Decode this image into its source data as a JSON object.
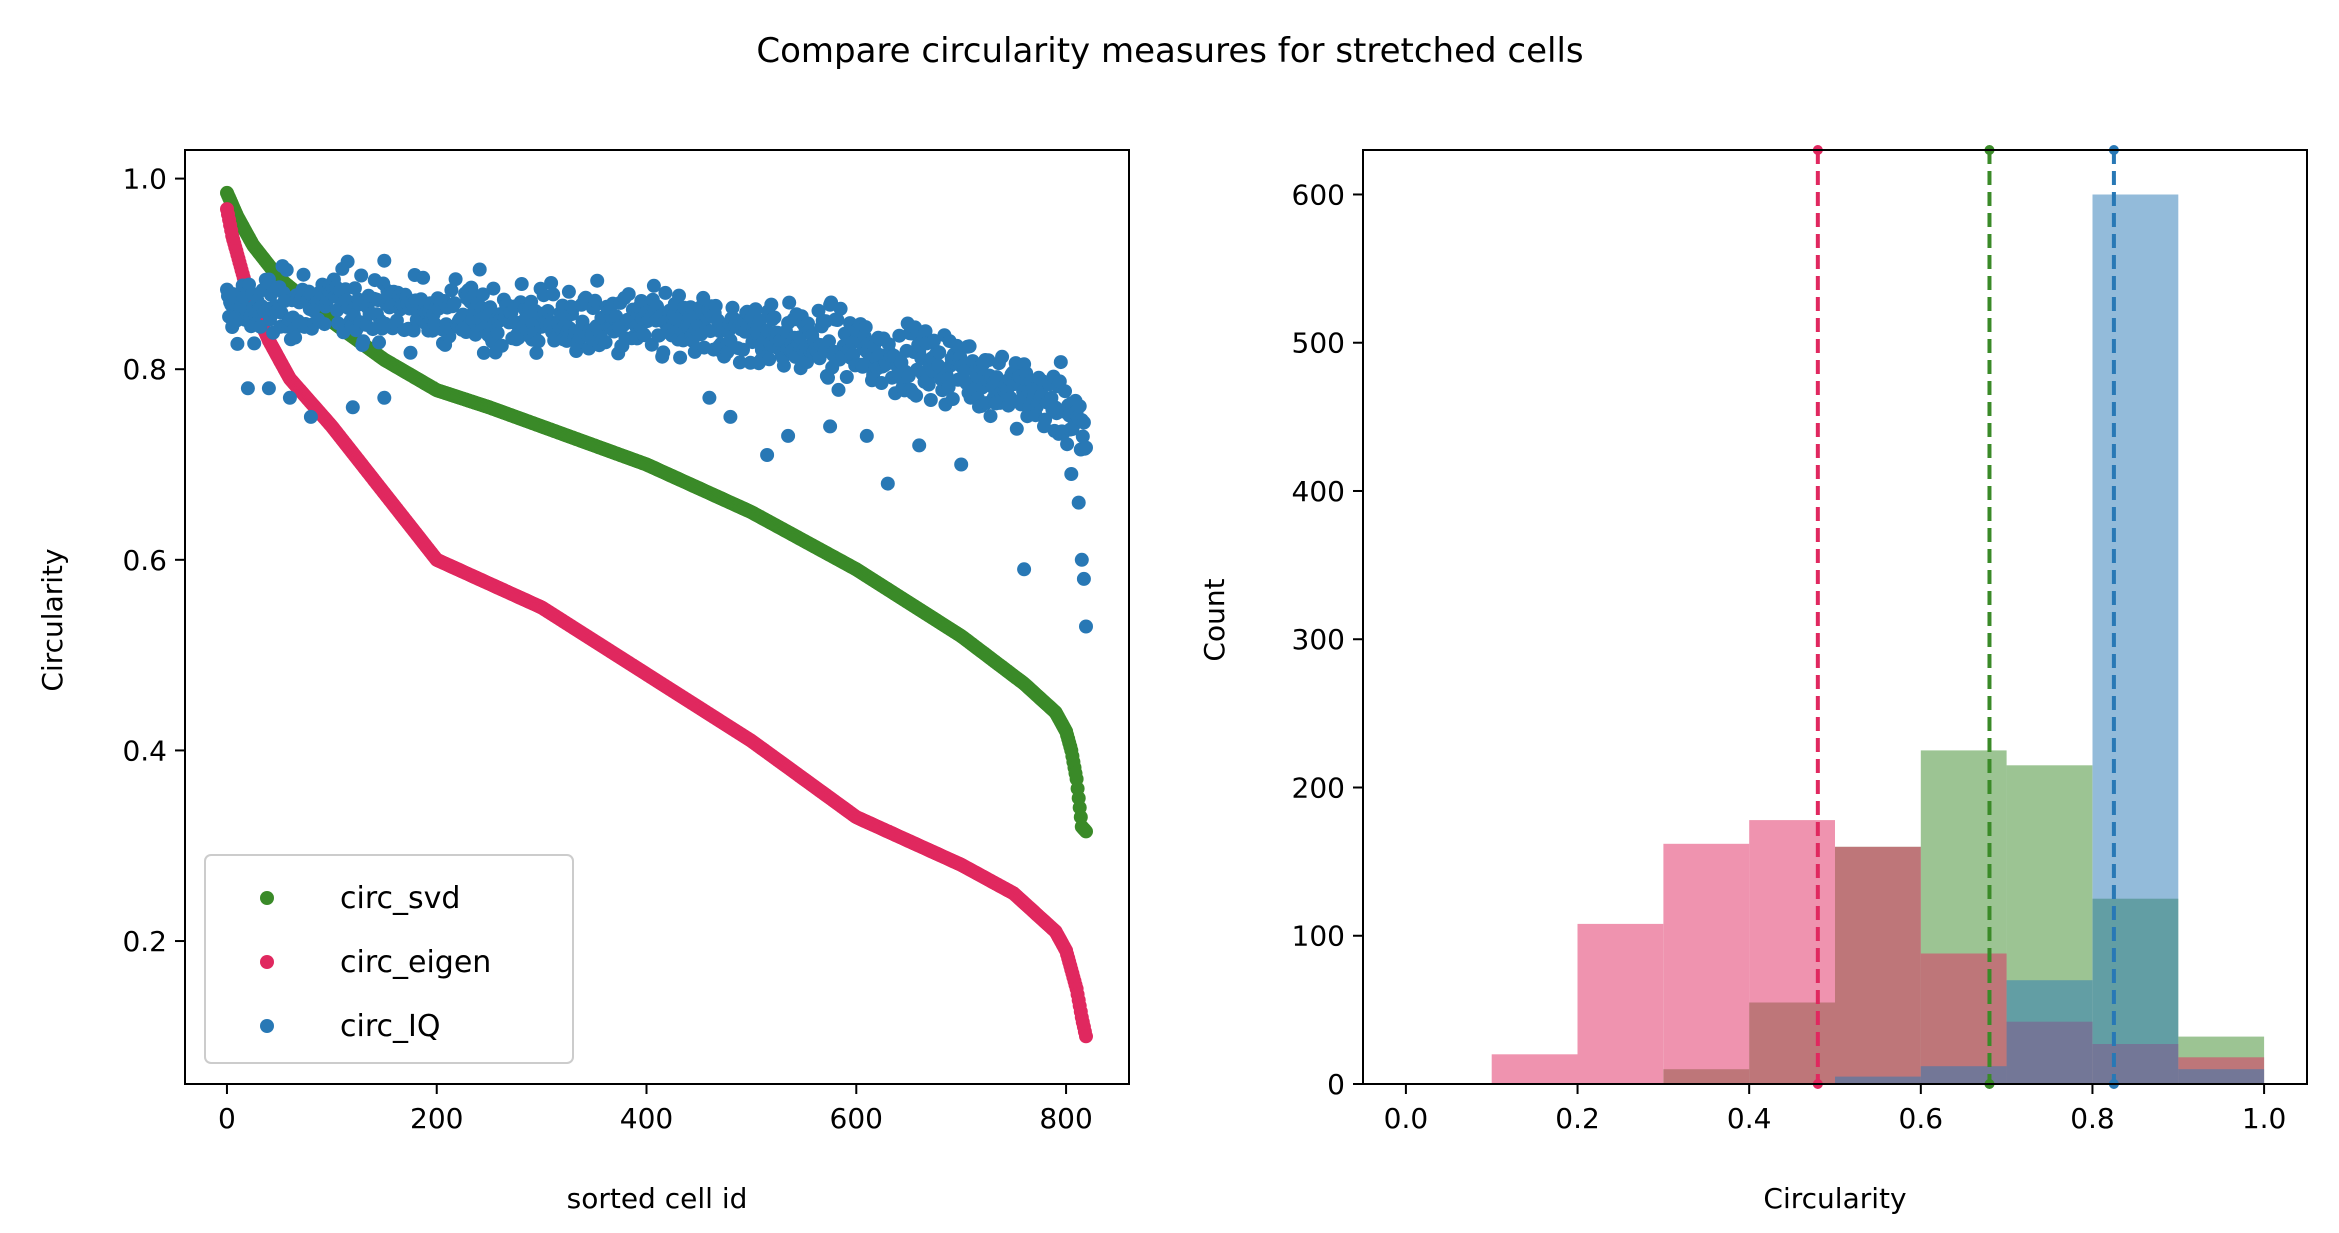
{
  "figure": {
    "title": "Compare circularity measures for stretched cells"
  },
  "chart_data": [
    {
      "type": "scatter",
      "xlabel": "sorted cell id",
      "ylabel": "Circularity",
      "xlim": [
        -40,
        860
      ],
      "ylim": [
        0.05,
        1.03
      ],
      "xticks": [
        0,
        200,
        400,
        600,
        800
      ],
      "xtick_labels": [
        "0",
        "200",
        "400",
        "600",
        "800"
      ],
      "yticks": [
        0.2,
        0.4,
        0.6,
        0.8,
        1.0
      ],
      "ytick_labels": [
        "0.2",
        "0.4",
        "0.6",
        "0.8",
        "1.0"
      ],
      "legend_position": "lower-left",
      "n_points": 820,
      "series": [
        {
          "name": "circ_svd",
          "color": "#3a8a28",
          "curve": [
            [
              0,
              0.985
            ],
            [
              10,
              0.96
            ],
            [
              25,
              0.93
            ],
            [
              50,
              0.895
            ],
            [
              100,
              0.85
            ],
            [
              150,
              0.81
            ],
            [
              200,
              0.778
            ],
            [
              250,
              0.76
            ],
            [
              300,
              0.74
            ],
            [
              400,
              0.7
            ],
            [
              500,
              0.65
            ],
            [
              600,
              0.59
            ],
            [
              700,
              0.52
            ],
            [
              760,
              0.47
            ],
            [
              790,
              0.44
            ],
            [
              800,
              0.42
            ],
            [
              805,
              0.4
            ],
            [
              810,
              0.37
            ],
            [
              815,
              0.32
            ],
            [
              819,
              0.315
            ]
          ]
        },
        {
          "name": "circ_eigen",
          "color": "#e0285f",
          "curve": [
            [
              0,
              0.968
            ],
            [
              5,
              0.94
            ],
            [
              20,
              0.88
            ],
            [
              40,
              0.83
            ],
            [
              60,
              0.79
            ],
            [
              100,
              0.74
            ],
            [
              150,
              0.67
            ],
            [
              200,
              0.6
            ],
            [
              250,
              0.575
            ],
            [
              300,
              0.55
            ],
            [
              400,
              0.48
            ],
            [
              500,
              0.41
            ],
            [
              600,
              0.33
            ],
            [
              700,
              0.28
            ],
            [
              750,
              0.25
            ],
            [
              790,
              0.21
            ],
            [
              800,
              0.19
            ],
            [
              805,
              0.17
            ],
            [
              810,
              0.15
            ],
            [
              815,
              0.12
            ],
            [
              819,
              0.1
            ]
          ]
        },
        {
          "name": "circ_IQ",
          "color": "#2878b5",
          "trend": [
            [
              0,
              0.86
            ],
            [
              100,
              0.87
            ],
            [
              300,
              0.85
            ],
            [
              500,
              0.84
            ],
            [
              600,
              0.82
            ],
            [
              700,
              0.8
            ],
            [
              800,
              0.76
            ],
            [
              819,
              0.72
            ]
          ],
          "spread": 0.03,
          "outliers": [
            [
              20,
              0.78
            ],
            [
              40,
              0.78
            ],
            [
              60,
              0.77
            ],
            [
              80,
              0.75
            ],
            [
              120,
              0.76
            ],
            [
              150,
              0.77
            ],
            [
              460,
              0.77
            ],
            [
              480,
              0.75
            ],
            [
              515,
              0.71
            ],
            [
              535,
              0.73
            ],
            [
              575,
              0.74
            ],
            [
              610,
              0.73
            ],
            [
              630,
              0.68
            ],
            [
              660,
              0.72
            ],
            [
              700,
              0.7
            ],
            [
              760,
              0.59
            ],
            [
              805,
              0.69
            ],
            [
              812,
              0.66
            ],
            [
              815,
              0.6
            ],
            [
              817,
              0.58
            ],
            [
              819,
              0.53
            ]
          ]
        }
      ]
    },
    {
      "type": "histogram",
      "xlabel": "Circularity",
      "ylabel": "Count",
      "xlim": [
        -0.05,
        1.05
      ],
      "ylim": [
        0,
        630
      ],
      "xticks": [
        0.0,
        0.2,
        0.4,
        0.6,
        0.8,
        1.0
      ],
      "xtick_labels": [
        "0.0",
        "0.2",
        "0.4",
        "0.6",
        "0.8",
        "1.0"
      ],
      "yticks": [
        0,
        100,
        200,
        300,
        400,
        500,
        600
      ],
      "ytick_labels": [
        "0",
        "100",
        "200",
        "300",
        "400",
        "500",
        "600"
      ],
      "bins": [
        0.0,
        0.1,
        0.2,
        0.3,
        0.4,
        0.5,
        0.6,
        0.7,
        0.8,
        0.9,
        1.0
      ],
      "series": [
        {
          "name": "circ_svd",
          "color": "#3a8a28",
          "counts": [
            0,
            0,
            0,
            10,
            55,
            160,
            225,
            215,
            125,
            32
          ],
          "median": 0.68
        },
        {
          "name": "circ_eigen",
          "color": "#e0285f",
          "counts": [
            0,
            20,
            108,
            162,
            178,
            160,
            88,
            42,
            27,
            18
          ],
          "median": 0.48
        },
        {
          "name": "circ_IQ",
          "color": "#2878b5",
          "counts": [
            0,
            0,
            0,
            0,
            0,
            5,
            12,
            70,
            600,
            10
          ],
          "median": 0.825
        }
      ]
    }
  ]
}
